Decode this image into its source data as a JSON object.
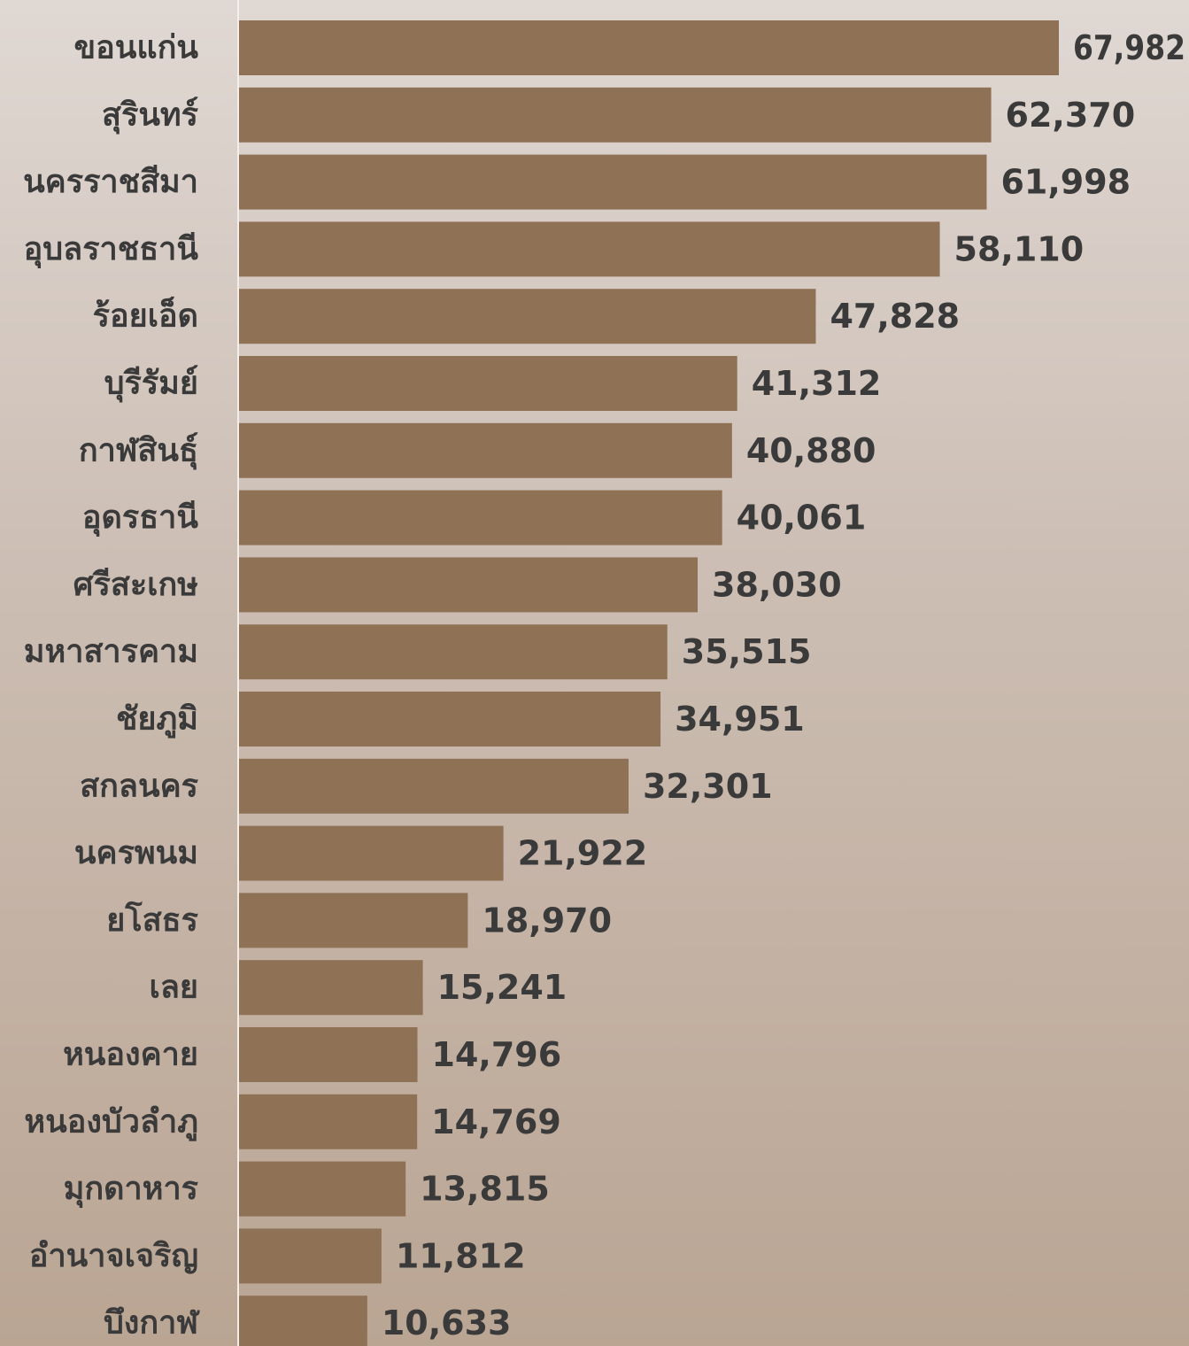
{
  "colors": {
    "bar": "#8f7256",
    "text": "#3a3a3a",
    "axis": "#f3eeea"
  },
  "chart_data": {
    "type": "bar",
    "orientation": "horizontal",
    "categories": [
      "ขอนแก่น",
      "สุรินทร์",
      "นครราชสีมา",
      "อุบลราชธานี",
      "ร้อยเอ็ด",
      "บุรีรัมย์",
      "กาฬสินธุ์",
      "อุดรธานี",
      "ศรีสะเกษ",
      "มหาสารคาม",
      "ชัยภูมิ",
      "สกลนคร",
      "นครพนม",
      "ยโสธร",
      "เลย",
      "หนองคาย",
      "หนองบัวลำภู",
      "มุกดาหาร",
      "อำนาจเจริญ",
      "บึงกาฬ"
    ],
    "values": [
      67982,
      62370,
      61998,
      58110,
      47828,
      41312,
      40880,
      40061,
      38030,
      35515,
      34951,
      32301,
      21922,
      18970,
      15241,
      14796,
      14769,
      13815,
      11812,
      10633
    ],
    "value_labels": [
      "67,982",
      "62,370",
      "61,998",
      "58,110",
      "47,828",
      "41,312",
      "40,880",
      "40,061",
      "38,030",
      "35,515",
      "34,951",
      "32,301",
      "21,922",
      "18,970",
      "15,241",
      "14,796",
      "14,769",
      "13,815",
      "11,812",
      "10,633"
    ],
    "title": "",
    "xlabel": "",
    "ylabel": "",
    "xlim": [
      0,
      67982
    ],
    "grid": false,
    "legend": "none"
  }
}
